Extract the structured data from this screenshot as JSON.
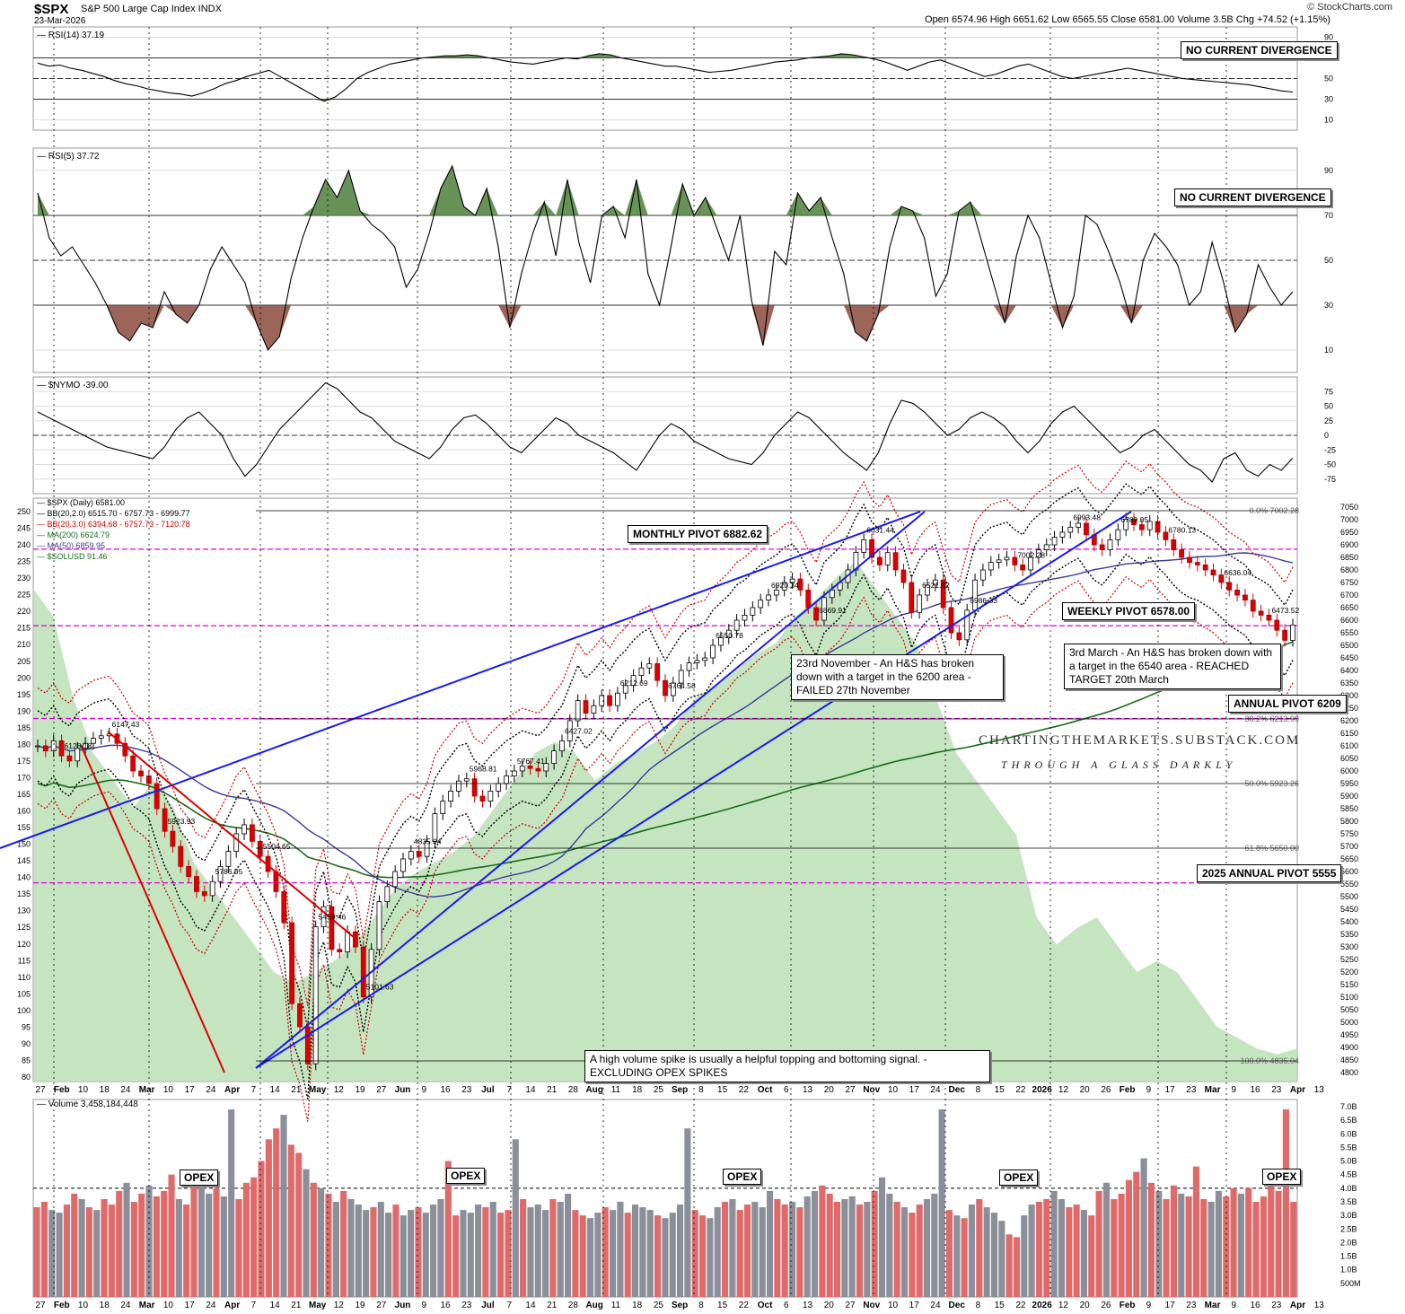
{
  "header": {
    "symbol": "$SPX",
    "description": "S&P 500 Large Cap Index INDX",
    "date": "23-Mar-2026",
    "ohlc": "Open 6574.96  High 6651.62  Low 6565.55  Close 6581.00  Volume 3.5B  Chg +74.52 (+1.15%)",
    "logo": "© StockCharts.com",
    "accent_up": "#000000",
    "accent_down": "#cc0000"
  },
  "chart_data": [
    {
      "type": "line",
      "title": "RSI(14) 37.19",
      "ylim": [
        0,
        100
      ],
      "yticks": [
        "90",
        "70",
        "50",
        "30",
        "10"
      ],
      "annotation": "NO CURRENT DIVERGENCE",
      "values": [
        65,
        62,
        63,
        60,
        58,
        55,
        52,
        48,
        45,
        43,
        40,
        38,
        36,
        35,
        33,
        36,
        40,
        45,
        48,
        52,
        55,
        58,
        52,
        46,
        40,
        34,
        28,
        32,
        40,
        50,
        56,
        60,
        64,
        66,
        68,
        70,
        71,
        72,
        72,
        73,
        72,
        70,
        68,
        66,
        65,
        64,
        66,
        68,
        70,
        69,
        72,
        74,
        73,
        70,
        68,
        66,
        64,
        62,
        62,
        60,
        58,
        56,
        57,
        58,
        60,
        62,
        64,
        66,
        67,
        68,
        70,
        71,
        72,
        74,
        73,
        71,
        69,
        66,
        62,
        58,
        62,
        66,
        68,
        64,
        60,
        56,
        52,
        54,
        58,
        62,
        64,
        60,
        56,
        52,
        50,
        52,
        54,
        56,
        58,
        60,
        58,
        56,
        54,
        52,
        50,
        49,
        48,
        47,
        46,
        45,
        44,
        42,
        40,
        38,
        37
      ]
    },
    {
      "type": "line",
      "title": "RSI(5) 37.72",
      "ylim": [
        0,
        100
      ],
      "yticks": [
        "90",
        "70",
        "50",
        "30",
        "10"
      ],
      "annotation": "NO CURRENT DIVERGENCE",
      "values": [
        80,
        60,
        52,
        56,
        48,
        40,
        30,
        18,
        14,
        22,
        20,
        36,
        26,
        22,
        30,
        46,
        56,
        48,
        40,
        22,
        10,
        16,
        42,
        60,
        74,
        86,
        78,
        90,
        72,
        66,
        62,
        56,
        38,
        46,
        62,
        82,
        92,
        74,
        70,
        82,
        56,
        20,
        44,
        62,
        76,
        52,
        86,
        58,
        40,
        70,
        74,
        60,
        86,
        44,
        30,
        56,
        84,
        70,
        78,
        64,
        50,
        70,
        32,
        12,
        54,
        48,
        80,
        72,
        78,
        60,
        44,
        18,
        14,
        26,
        56,
        74,
        72,
        60,
        34,
        44,
        72,
        76,
        58,
        40,
        22,
        52,
        70,
        60,
        40,
        20,
        34,
        70,
        66,
        54,
        40,
        22,
        50,
        62,
        56,
        48,
        30,
        36,
        58,
        40,
        18,
        26,
        48,
        38,
        30,
        36
      ]
    },
    {
      "type": "line",
      "title": "$NYMO -39.00",
      "ylim": [
        -100,
        100
      ],
      "yticks": [
        "75",
        "50",
        "25",
        "0",
        "-25",
        "-50",
        "-75"
      ],
      "values": [
        40,
        30,
        20,
        10,
        0,
        -10,
        -20,
        -25,
        -30,
        -35,
        -40,
        -20,
        10,
        30,
        40,
        20,
        0,
        -40,
        -70,
        -50,
        -20,
        10,
        30,
        50,
        70,
        90,
        80,
        60,
        40,
        30,
        10,
        -10,
        -20,
        -30,
        -40,
        -20,
        10,
        30,
        35,
        20,
        0,
        -20,
        -30,
        -10,
        10,
        30,
        20,
        0,
        -10,
        -20,
        -30,
        -45,
        -60,
        -30,
        0,
        20,
        10,
        -10,
        -20,
        -30,
        -40,
        -45,
        -50,
        -30,
        0,
        20,
        40,
        30,
        10,
        -10,
        -30,
        -45,
        -60,
        -30,
        20,
        60,
        55,
        40,
        20,
        0,
        10,
        30,
        40,
        30,
        15,
        -10,
        -30,
        -10,
        20,
        40,
        50,
        30,
        10,
        -10,
        -30,
        -20,
        0,
        10,
        -10,
        -30,
        -50,
        -60,
        -80,
        -40,
        -30,
        -60,
        -70,
        -50,
        -60,
        -39
      ]
    },
    {
      "type": "candlestick",
      "title": "$SPX (Daily) 6581.00",
      "ylim": [
        4800,
        7050
      ],
      "yticks": [
        "7050",
        "7000",
        "6950",
        "6900",
        "6850",
        "6800",
        "6750",
        "6700",
        "6650",
        "6600",
        "6550",
        "6500",
        "6450",
        "6400",
        "6350",
        "6300",
        "6250",
        "6200",
        "6150",
        "6100",
        "6050",
        "6000",
        "5950",
        "5900",
        "5850",
        "5800",
        "5750",
        "5700",
        "5650",
        "5600",
        "5550",
        "5500",
        "5450",
        "5400",
        "5350",
        "5300",
        "5250",
        "5200",
        "5150",
        "5100",
        "5050",
        "5000",
        "4950",
        "4900",
        "4850",
        "4800"
      ],
      "yticks_left": [
        "250",
        "245",
        "240",
        "235",
        "230",
        "225",
        "220",
        "215",
        "210",
        "205",
        "200",
        "195",
        "190",
        "185",
        "180",
        "175",
        "170",
        "165",
        "160",
        "155",
        "150",
        "145",
        "140",
        "135",
        "130",
        "125",
        "120",
        "115",
        "110",
        "105",
        "100",
        "95",
        "90",
        "85",
        "80"
      ],
      "legend": [
        "$SPX (Daily) 6581.00",
        "BB(20,2.0) 6515.70 - 6757.73 - 6999.77",
        "BB(20,3.0) 6394.68 - 6757.73 - 7120.78",
        "MA(200) 6624.79",
        "MA(50) 6859.95",
        "$SOLUSD 91.46"
      ],
      "close_series": [
        6100,
        6080,
        6120,
        6060,
        6040,
        6090,
        6110,
        6130,
        6140,
        6147,
        6110,
        6060,
        6000,
        5980,
        5950,
        5850,
        5760,
        5700,
        5620,
        5580,
        5520,
        5504,
        5560,
        5620,
        5680,
        5750,
        5786,
        5720,
        5660,
        5600,
        5520,
        5396,
        5074,
        4982,
        4835,
        5380,
        5460,
        5290,
        5280,
        5360,
        5300,
        5101,
        5290,
        5480,
        5540,
        5600,
        5650,
        5680,
        5660,
        5720,
        5830,
        5880,
        5920,
        5960,
        5969,
        5900,
        5880,
        5920,
        5950,
        5980,
        6000,
        6020,
        6010,
        6000,
        6030,
        6080,
        6120,
        6200,
        6280,
        6230,
        6260,
        6300,
        6260,
        6310,
        6340,
        6380,
        6410,
        6427,
        6360,
        6300,
        6350,
        6400,
        6430,
        6440,
        6450,
        6500,
        6530,
        6560,
        6600,
        6620,
        6650,
        6680,
        6700,
        6720,
        6750,
        6764,
        6720,
        6650,
        6600,
        6690,
        6720,
        6750,
        6800,
        6870,
        6920,
        6850,
        6820,
        6869,
        6800,
        6750,
        6631,
        6700,
        6740,
        6760,
        6650,
        6550,
        6522,
        6640,
        6760,
        6800,
        6830,
        6840,
        6850,
        6820,
        6800,
        6850,
        6880,
        6900,
        6930,
        6950,
        6970,
        6986,
        6940,
        6900,
        6880,
        6920,
        6960,
        7002,
        6980,
        6960,
        6993,
        6950,
        6920,
        6880,
        6850,
        6830,
        6820,
        6800,
        6780,
        6750,
        6720,
        6700,
        6680,
        6636,
        6620,
        6600,
        6560,
        6520,
        6581
      ],
      "price_labels": [
        {
          "x": "Feb",
          "label": "6128.18"
        },
        {
          "x": "Feb 18",
          "label": "6147.43"
        },
        {
          "x": "Feb 3",
          "label": "5923.93"
        },
        {
          "x": "Mar 24",
          "label": "5786.95"
        },
        {
          "x": "Mar 10",
          "label": "5504.65"
        },
        {
          "x": "Apr 9",
          "label": "5459.46"
        },
        {
          "x": "Apr 21",
          "label": "5101.63"
        },
        {
          "x": "Apr 7",
          "label": "4835.04"
        },
        {
          "x": "May 12",
          "label": "5968.81"
        },
        {
          "x": "May 23",
          "label": "5767.41"
        },
        {
          "x": "Jul 28",
          "label": "6427.02"
        },
        {
          "x": "Aug 1",
          "label": "6212.69"
        },
        {
          "x": "Sep 22",
          "label": "6764.58"
        },
        {
          "x": "Oct 10",
          "label": "6550.78"
        },
        {
          "x": "Oct 29",
          "label": "6920.34"
        },
        {
          "x": "Nov 3",
          "label": "6869.91"
        },
        {
          "x": "Nov 7",
          "label": "6631.44"
        },
        {
          "x": "Nov 20",
          "label": "6521.92"
        },
        {
          "x": "Dec 11",
          "label": "6986.33"
        },
        {
          "x": "Jan 27",
          "label": "7002.28"
        },
        {
          "x": "Feb 2",
          "label": "6993.48"
        },
        {
          "x": "Jan 20",
          "label": "6789.05"
        },
        {
          "x": "Feb 5",
          "label": "6780.13"
        },
        {
          "x": "Mar 9",
          "label": "6636.04"
        },
        {
          "x": "Mar 20",
          "label": "6473.52"
        }
      ],
      "levels": [
        {
          "label": "MONTHLY PIVOT 6882.62",
          "value": 6882.62,
          "style": "pivot"
        },
        {
          "label": "WEEKLY PIVOT 6578.00",
          "value": 6578.0,
          "style": "pivot"
        },
        {
          "label": "ANNUAL PIVOT 6209",
          "value": 6209,
          "style": "pivot"
        },
        {
          "label": "2025 ANNUAL PIVOT 5555",
          "value": 5555,
          "style": "pivot"
        }
      ],
      "fib_labels": [
        "0.0% 7002.28",
        "38.2% 6213.99",
        "50.0% 5923.26",
        "61.8% 5650.00",
        "100.0% 4835.04"
      ],
      "notes": [
        "23rd November - An H&S has broken down with a target in the 6200 area - FAILED 27th November",
        "3rd March - An H&S has broken down with a target in the 6540 area - REACHED TARGET 20th March"
      ],
      "volume_note": "A high volume spike is usually a helpful topping and bottoming signal. - EXCLUDING OPEX SPIKES",
      "branding": "CHARTINGTHEMARKETS.SUBSTACK.COM",
      "tagline": "THROUGH A GLASS DARKLY"
    },
    {
      "type": "bar",
      "title": "Volume 3,458,184,448",
      "ylim": [
        0,
        7.0
      ],
      "yticks": [
        "7.0B",
        "6.5B",
        "6.0B",
        "5.5B",
        "5.0B",
        "4.5B",
        "4.0B",
        "3.5B",
        "3.0B",
        "2.5B",
        "2.0B",
        "1.5B",
        "1.0B",
        "500M"
      ],
      "opex_labels": [
        "OPEX",
        "OPEX",
        "OPEX",
        "OPEX",
        "OPEX"
      ],
      "values": [
        3.3,
        3.5,
        3.2,
        3.1,
        3.4,
        3.8,
        3.6,
        3.3,
        3.2,
        3.6,
        3.4,
        3.9,
        4.2,
        3.5,
        3.8,
        4.1,
        3.7,
        3.9,
        4.5,
        3.6,
        3.4,
        4.6,
        4.1,
        3.8,
        4.0,
        3.7,
        6.9,
        3.6,
        4.2,
        4.4,
        5.0,
        5.8,
        6.2,
        6.7,
        5.6,
        5.3,
        4.7,
        4.2,
        4.0,
        3.8,
        3.5,
        3.9,
        3.6,
        3.4,
        3.2,
        3.3,
        3.5,
        3.1,
        3.4,
        3.0,
        3.2,
        3.3,
        3.1,
        3.4,
        3.6,
        5.0,
        3.0,
        3.2,
        3.1,
        3.4,
        3.3,
        3.5,
        3.1,
        3.2,
        5.8,
        3.6,
        3.3,
        3.4,
        3.2,
        3.6,
        3.5,
        3.8,
        3.2,
        3.0,
        2.9,
        3.1,
        3.3,
        3.2,
        3.5,
        3.1,
        3.4,
        3.3,
        3.2,
        3.0,
        2.9,
        3.1,
        3.4,
        6.2,
        3.2,
        3.0,
        2.9,
        3.3,
        3.5,
        3.6,
        3.2,
        3.4,
        3.5,
        3.3,
        3.9,
        3.6,
        3.4,
        3.5,
        3.3,
        3.7,
        3.9,
        4.1,
        3.8,
        3.5,
        3.6,
        3.7,
        3.4,
        3.5,
        3.9,
        4.4,
        3.8,
        3.5,
        3.3,
        3.1,
        3.4,
        3.6,
        3.8,
        6.9,
        3.2,
        3.0,
        2.9,
        3.4,
        3.6,
        3.3,
        3.1,
        2.8,
        2.3,
        2.2,
        3.0,
        3.4,
        3.5,
        3.6,
        3.9,
        3.6,
        3.3,
        3.4,
        3.2,
        3.0,
        3.9,
        4.2,
        3.6,
        3.8,
        4.3,
        4.6,
        5.1,
        4.2,
        3.9,
        3.6,
        4.1,
        3.8,
        3.7,
        4.8,
        3.6,
        3.5,
        3.9,
        3.7,
        4.0,
        3.8,
        4.0,
        3.5,
        3.7,
        4.5,
        3.9,
        6.9,
        3.5
      ],
      "types": [
        "d",
        "d",
        "u",
        "u",
        "d",
        "d",
        "u",
        "d",
        "u",
        "d",
        "d",
        "d",
        "u",
        "d",
        "d",
        "u",
        "d",
        "d",
        "d",
        "u",
        "d",
        "d",
        "u",
        "u",
        "d",
        "u",
        "u",
        "d",
        "d",
        "d",
        "d",
        "d",
        "d",
        "u",
        "d",
        "d",
        "u",
        "d",
        "u",
        "d",
        "u",
        "d",
        "u",
        "u",
        "u",
        "d",
        "u",
        "u",
        "d",
        "u",
        "u",
        "d",
        "u",
        "u",
        "u",
        "d",
        "d",
        "u",
        "u",
        "u",
        "d",
        "u",
        "d",
        "d",
        "u",
        "d",
        "u",
        "u",
        "u",
        "d",
        "u",
        "u",
        "d",
        "d",
        "u",
        "u",
        "d",
        "u",
        "u",
        "d",
        "u",
        "u",
        "u",
        "d",
        "u",
        "u",
        "u",
        "u",
        "d",
        "d",
        "u",
        "u",
        "d",
        "u",
        "d",
        "d",
        "u",
        "u",
        "u",
        "d",
        "d",
        "u",
        "d",
        "u",
        "u",
        "d",
        "d",
        "d",
        "u",
        "u",
        "d",
        "u",
        "d",
        "u",
        "u",
        "d",
        "u",
        "d",
        "d",
        "u",
        "u",
        "u",
        "d",
        "u",
        "d",
        "u",
        "d",
        "u",
        "u",
        "u",
        "d",
        "d",
        "u",
        "u",
        "d",
        "d",
        "u",
        "u",
        "d",
        "d",
        "u",
        "d",
        "d",
        "u",
        "d",
        "d",
        "d",
        "d",
        "u",
        "d",
        "u",
        "d",
        "d",
        "u",
        "d",
        "d",
        "d",
        "u",
        "u",
        "d",
        "d",
        "u"
      ]
    }
  ],
  "x_axis": {
    "ticks": [
      "27",
      "Feb",
      "10",
      "18",
      "24",
      "Mar",
      "10",
      "17",
      "24",
      "Apr",
      "7",
      "14",
      "21",
      "May",
      "12",
      "19",
      "27",
      "Jun",
      "9",
      "16",
      "23",
      "Jul",
      "7",
      "14",
      "21",
      "28",
      "Aug",
      "11",
      "18",
      "25",
      "Sep",
      "8",
      "15",
      "22",
      "Oct",
      "6",
      "13",
      "20",
      "27",
      "Nov",
      "10",
      "17",
      "24",
      "Dec",
      "8",
      "15",
      "22",
      "2026",
      "12",
      "20",
      "26",
      "Feb",
      "9",
      "17",
      "23",
      "Mar",
      "9",
      "16",
      "23",
      "Apr",
      "13"
    ]
  }
}
